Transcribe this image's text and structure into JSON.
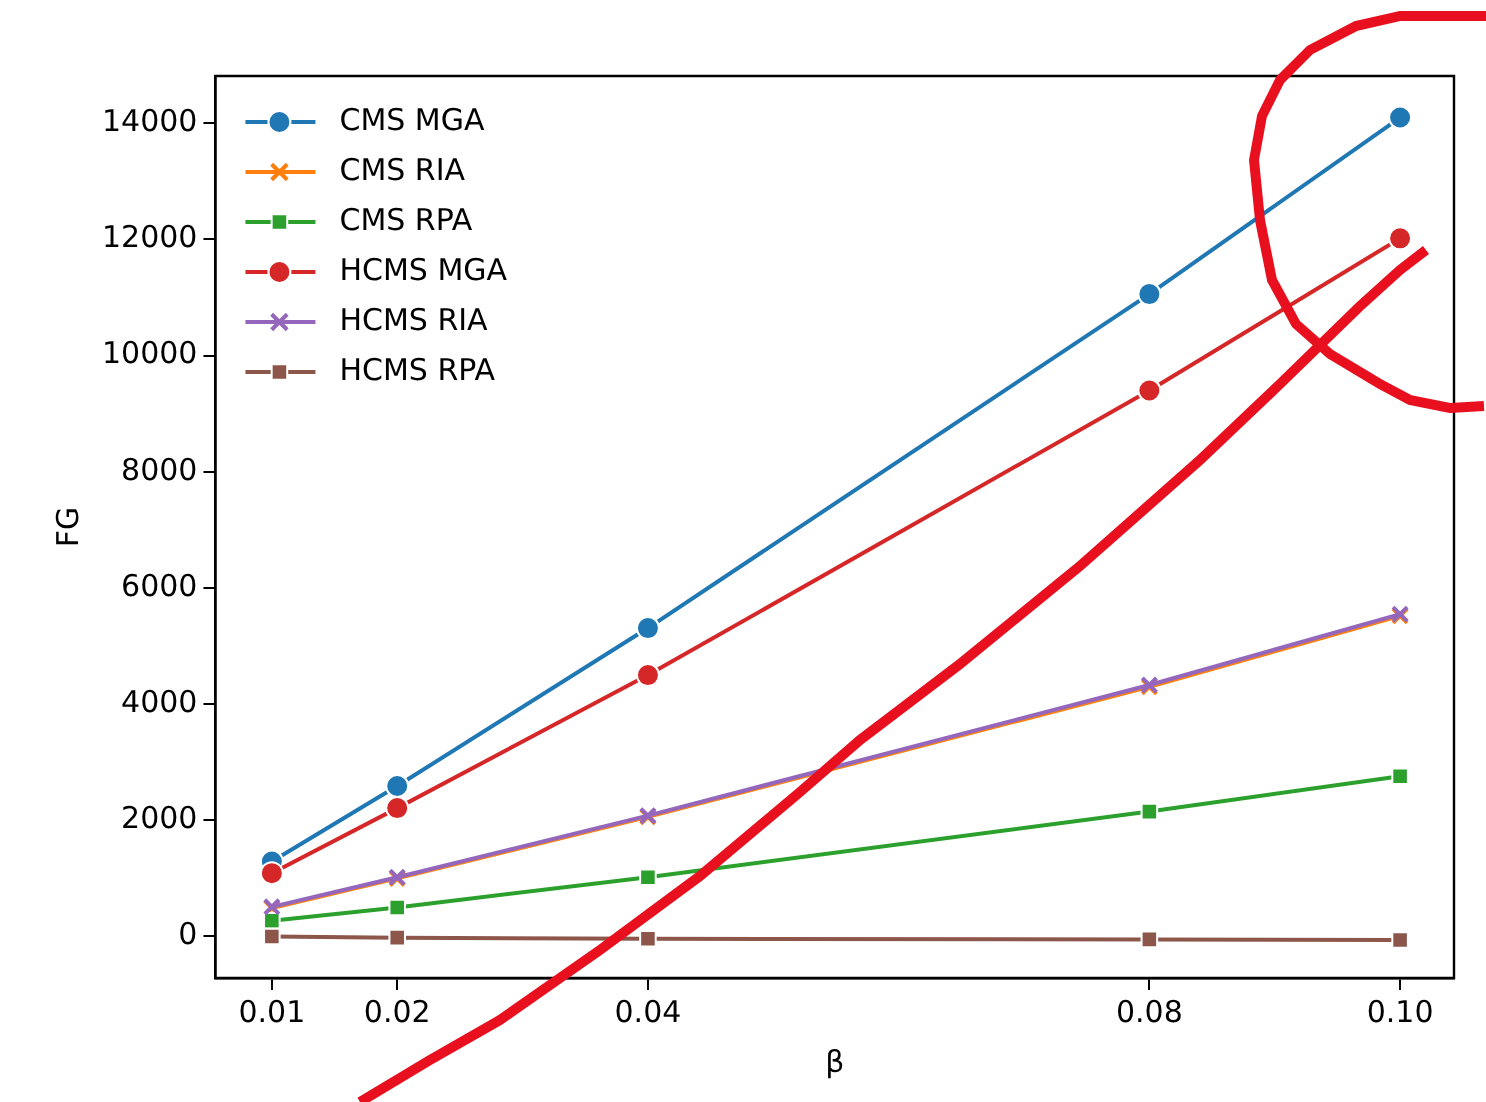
{
  "chart_data": {
    "type": "line",
    "xlabel": "β",
    "ylabel": "FG",
    "x": [
      0.01,
      0.02,
      0.04,
      0.08,
      0.1
    ],
    "xlim": [
      0.0055,
      0.1043
    ],
    "xticks": [
      0.01,
      0.02,
      0.04,
      0.08,
      {
        "value": 0.1,
        "label": "0.10"
      }
    ],
    "ylim": [
      -715,
      14815
    ],
    "yticks": [
      0,
      2000,
      4000,
      6000,
      8000,
      10000,
      12000,
      14000
    ],
    "grid": false,
    "legend": "top left",
    "line_style": "solid",
    "series": [
      {
        "name": "CMS MGA",
        "color": "#1f77b4",
        "marker": "circle",
        "values": [
          1290,
          2590,
          5310,
          11060,
          14100
        ]
      },
      {
        "name": "CMS RIA",
        "color": "#ff7f0e",
        "marker": "cross",
        "values": [
          490,
          1000,
          2060,
          4300,
          5520
        ]
      },
      {
        "name": "CMS RPA",
        "color": "#2ca02c",
        "marker": "square",
        "values": [
          270,
          500,
          1020,
          2150,
          2760
        ]
      },
      {
        "name": "HCMS MGA",
        "color": "#d62728",
        "marker": "circle",
        "values": [
          1090,
          2210,
          4500,
          9400,
          12020
        ]
      },
      {
        "name": "HCMS RIA",
        "color": "#9467bd",
        "marker": "cross",
        "values": [
          510,
          1020,
          2080,
          4330,
          5550
        ]
      },
      {
        "name": "HCMS RPA",
        "color": "#8c564b",
        "marker": "square",
        "values": [
          0,
          -20,
          -40,
          -50,
          -60
        ]
      }
    ]
  }
}
